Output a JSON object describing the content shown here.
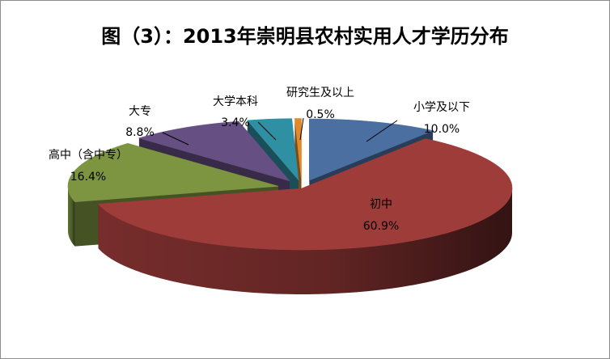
{
  "chart_data": {
    "type": "pie",
    "style": "3d-exploded",
    "title": "图（3）：2013年崇明县农村实用人才学历分布",
    "slices": [
      {
        "name": "小学及以下",
        "value": 10.0,
        "label": "10.0%",
        "color": "#4a6fa0"
      },
      {
        "name": "初中",
        "value": 60.9,
        "label": "60.9%",
        "color": "#9e3c3a"
      },
      {
        "name": "高中（含中专）",
        "value": 16.4,
        "label": "16.4%",
        "color": "#7d9540"
      },
      {
        "name": "大专",
        "value": 8.8,
        "label": "8.8%",
        "color": "#654f83"
      },
      {
        "name": "大学本科",
        "value": 3.4,
        "label": "3.4%",
        "color": "#2f90a4"
      },
      {
        "name": "研究生及以上",
        "value": 0.5,
        "label": "0.5%",
        "color": "#e08a2c"
      }
    ],
    "legend": "none"
  }
}
